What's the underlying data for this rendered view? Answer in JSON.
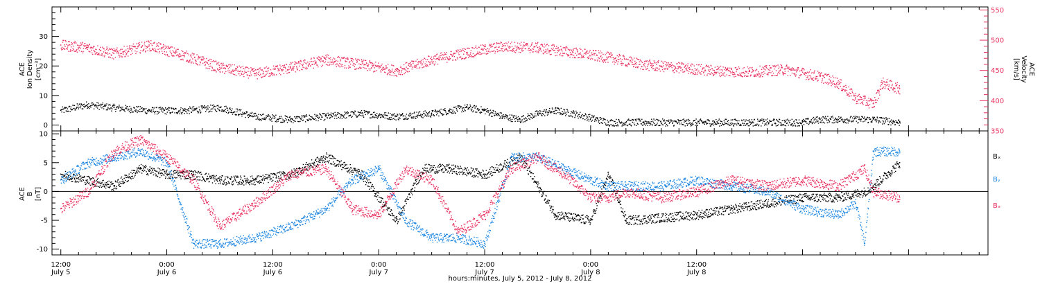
{
  "chart_data": [
    {
      "type": "scatter",
      "panel": "top",
      "ylabel": [
        "ACE",
        "Ion Density",
        "[cm⁻³]"
      ],
      "ylabel_right": [
        "ACE",
        "Velocity",
        "[km/s]"
      ],
      "ylim": [
        -2,
        40
      ],
      "yticks": [
        0,
        10,
        20,
        30
      ],
      "ylim_right": [
        350,
        555
      ],
      "yticks_right": [
        350,
        400,
        450,
        500,
        550
      ],
      "series": [
        {
          "axis": "left",
          "color": "#000000",
          "x": [
            0,
            3,
            6,
            10,
            14,
            18,
            22,
            26,
            30,
            34,
            38,
            42,
            44,
            46,
            48,
            50,
            52,
            54,
            56,
            58,
            62,
            66,
            70,
            74,
            78,
            82,
            84,
            86,
            88,
            92,
            95
          ],
          "values": [
            5,
            7,
            6,
            5,
            5,
            6,
            3,
            2,
            3,
            4,
            3,
            4,
            5,
            6,
            5,
            3,
            2,
            4,
            5,
            4,
            1,
            1,
            1,
            1,
            1,
            1,
            1,
            2,
            2,
            2,
            1
          ]
        },
        {
          "axis": "right",
          "color": "#e8305f",
          "x": [
            0,
            3,
            6,
            10,
            14,
            18,
            22,
            26,
            30,
            34,
            38,
            42,
            46,
            50,
            54,
            58,
            62,
            66,
            70,
            74,
            78,
            82,
            86,
            88,
            90,
            92,
            93,
            95
          ],
          "values": [
            492,
            488,
            478,
            492,
            475,
            455,
            445,
            455,
            468,
            460,
            450,
            468,
            480,
            490,
            488,
            480,
            472,
            460,
            455,
            450,
            448,
            452,
            440,
            430,
            405,
            395,
            430,
            420
          ]
        }
      ]
    },
    {
      "type": "scatter",
      "panel": "bottom",
      "ylabel": [
        "ACE",
        "B",
        "[nT]"
      ],
      "ylim": [
        -11,
        10.5
      ],
      "yticks": [
        -10,
        -5,
        0,
        5,
        10
      ],
      "zero_line": true,
      "legend": [
        "Bₓ",
        "Bᵧ",
        "Bₔ"
      ],
      "series": [
        {
          "name": "Bₓ",
          "color": "#000000",
          "x": [
            0,
            3,
            6,
            9,
            12,
            15,
            18,
            22,
            26,
            30,
            34,
            38,
            41,
            44,
            48,
            52,
            56,
            60,
            62,
            64,
            68,
            72,
            76,
            80,
            84,
            88,
            91,
            92,
            95
          ],
          "values": [
            3,
            2,
            1,
            4,
            3,
            3,
            2,
            2,
            3,
            6,
            3,
            -5,
            4,
            4,
            3,
            6,
            -4,
            -5,
            3,
            -5,
            -4.5,
            -4,
            -3,
            -2,
            -1,
            -1,
            0,
            1,
            5
          ]
        },
        {
          "name": "Bᵧ",
          "color": "#1d86e0",
          "x": [
            0,
            3,
            6,
            9,
            12,
            15,
            18,
            22,
            26,
            30,
            33,
            36,
            39,
            42,
            45,
            48,
            51,
            54,
            57,
            60,
            62,
            64,
            68,
            72,
            76,
            80,
            84,
            88,
            90,
            91,
            92,
            95
          ],
          "values": [
            2,
            5,
            6,
            7,
            5,
            -9,
            -9,
            -8,
            -6,
            -3,
            2,
            4,
            -5,
            -8,
            -8,
            -9,
            6,
            6,
            4,
            2,
            1,
            1,
            1,
            2,
            1,
            0,
            -3,
            -4,
            -2,
            -9,
            7,
            7
          ]
        },
        {
          "name": "Bₔ",
          "color": "#e8305f",
          "x": [
            0,
            3,
            6,
            9,
            12,
            15,
            18,
            22,
            26,
            30,
            33,
            36,
            39,
            42,
            45,
            48,
            51,
            54,
            57,
            60,
            62,
            64,
            68,
            72,
            76,
            80,
            84,
            88,
            91,
            92,
            95
          ],
          "values": [
            -3,
            0,
            7,
            9,
            6,
            2,
            -6,
            -2,
            3,
            4,
            -3,
            -4,
            4,
            2,
            -7,
            -4,
            4,
            6,
            3,
            -1,
            -1,
            0,
            -1,
            0,
            2,
            1,
            2,
            1,
            4,
            0,
            -1
          ]
        }
      ]
    }
  ],
  "x_axis": {
    "tick_labels": [
      "12:00",
      "0:00",
      "12:00",
      "0:00",
      "12:00",
      "0:00",
      "12:00"
    ],
    "tick_hours": [
      0,
      12,
      24,
      36,
      48,
      60,
      72
    ],
    "date_labels": [
      "July 5",
      "July 6",
      "July 6",
      "July 7",
      "July 7",
      "July 8",
      "July 8"
    ],
    "title": "hours:minutes, July  5, 2012 - July  8, 2012",
    "xlim": [
      -1,
      105
    ]
  },
  "colors": {
    "black": "#000000",
    "pink": "#e8305f",
    "blue": "#1d86e0"
  }
}
